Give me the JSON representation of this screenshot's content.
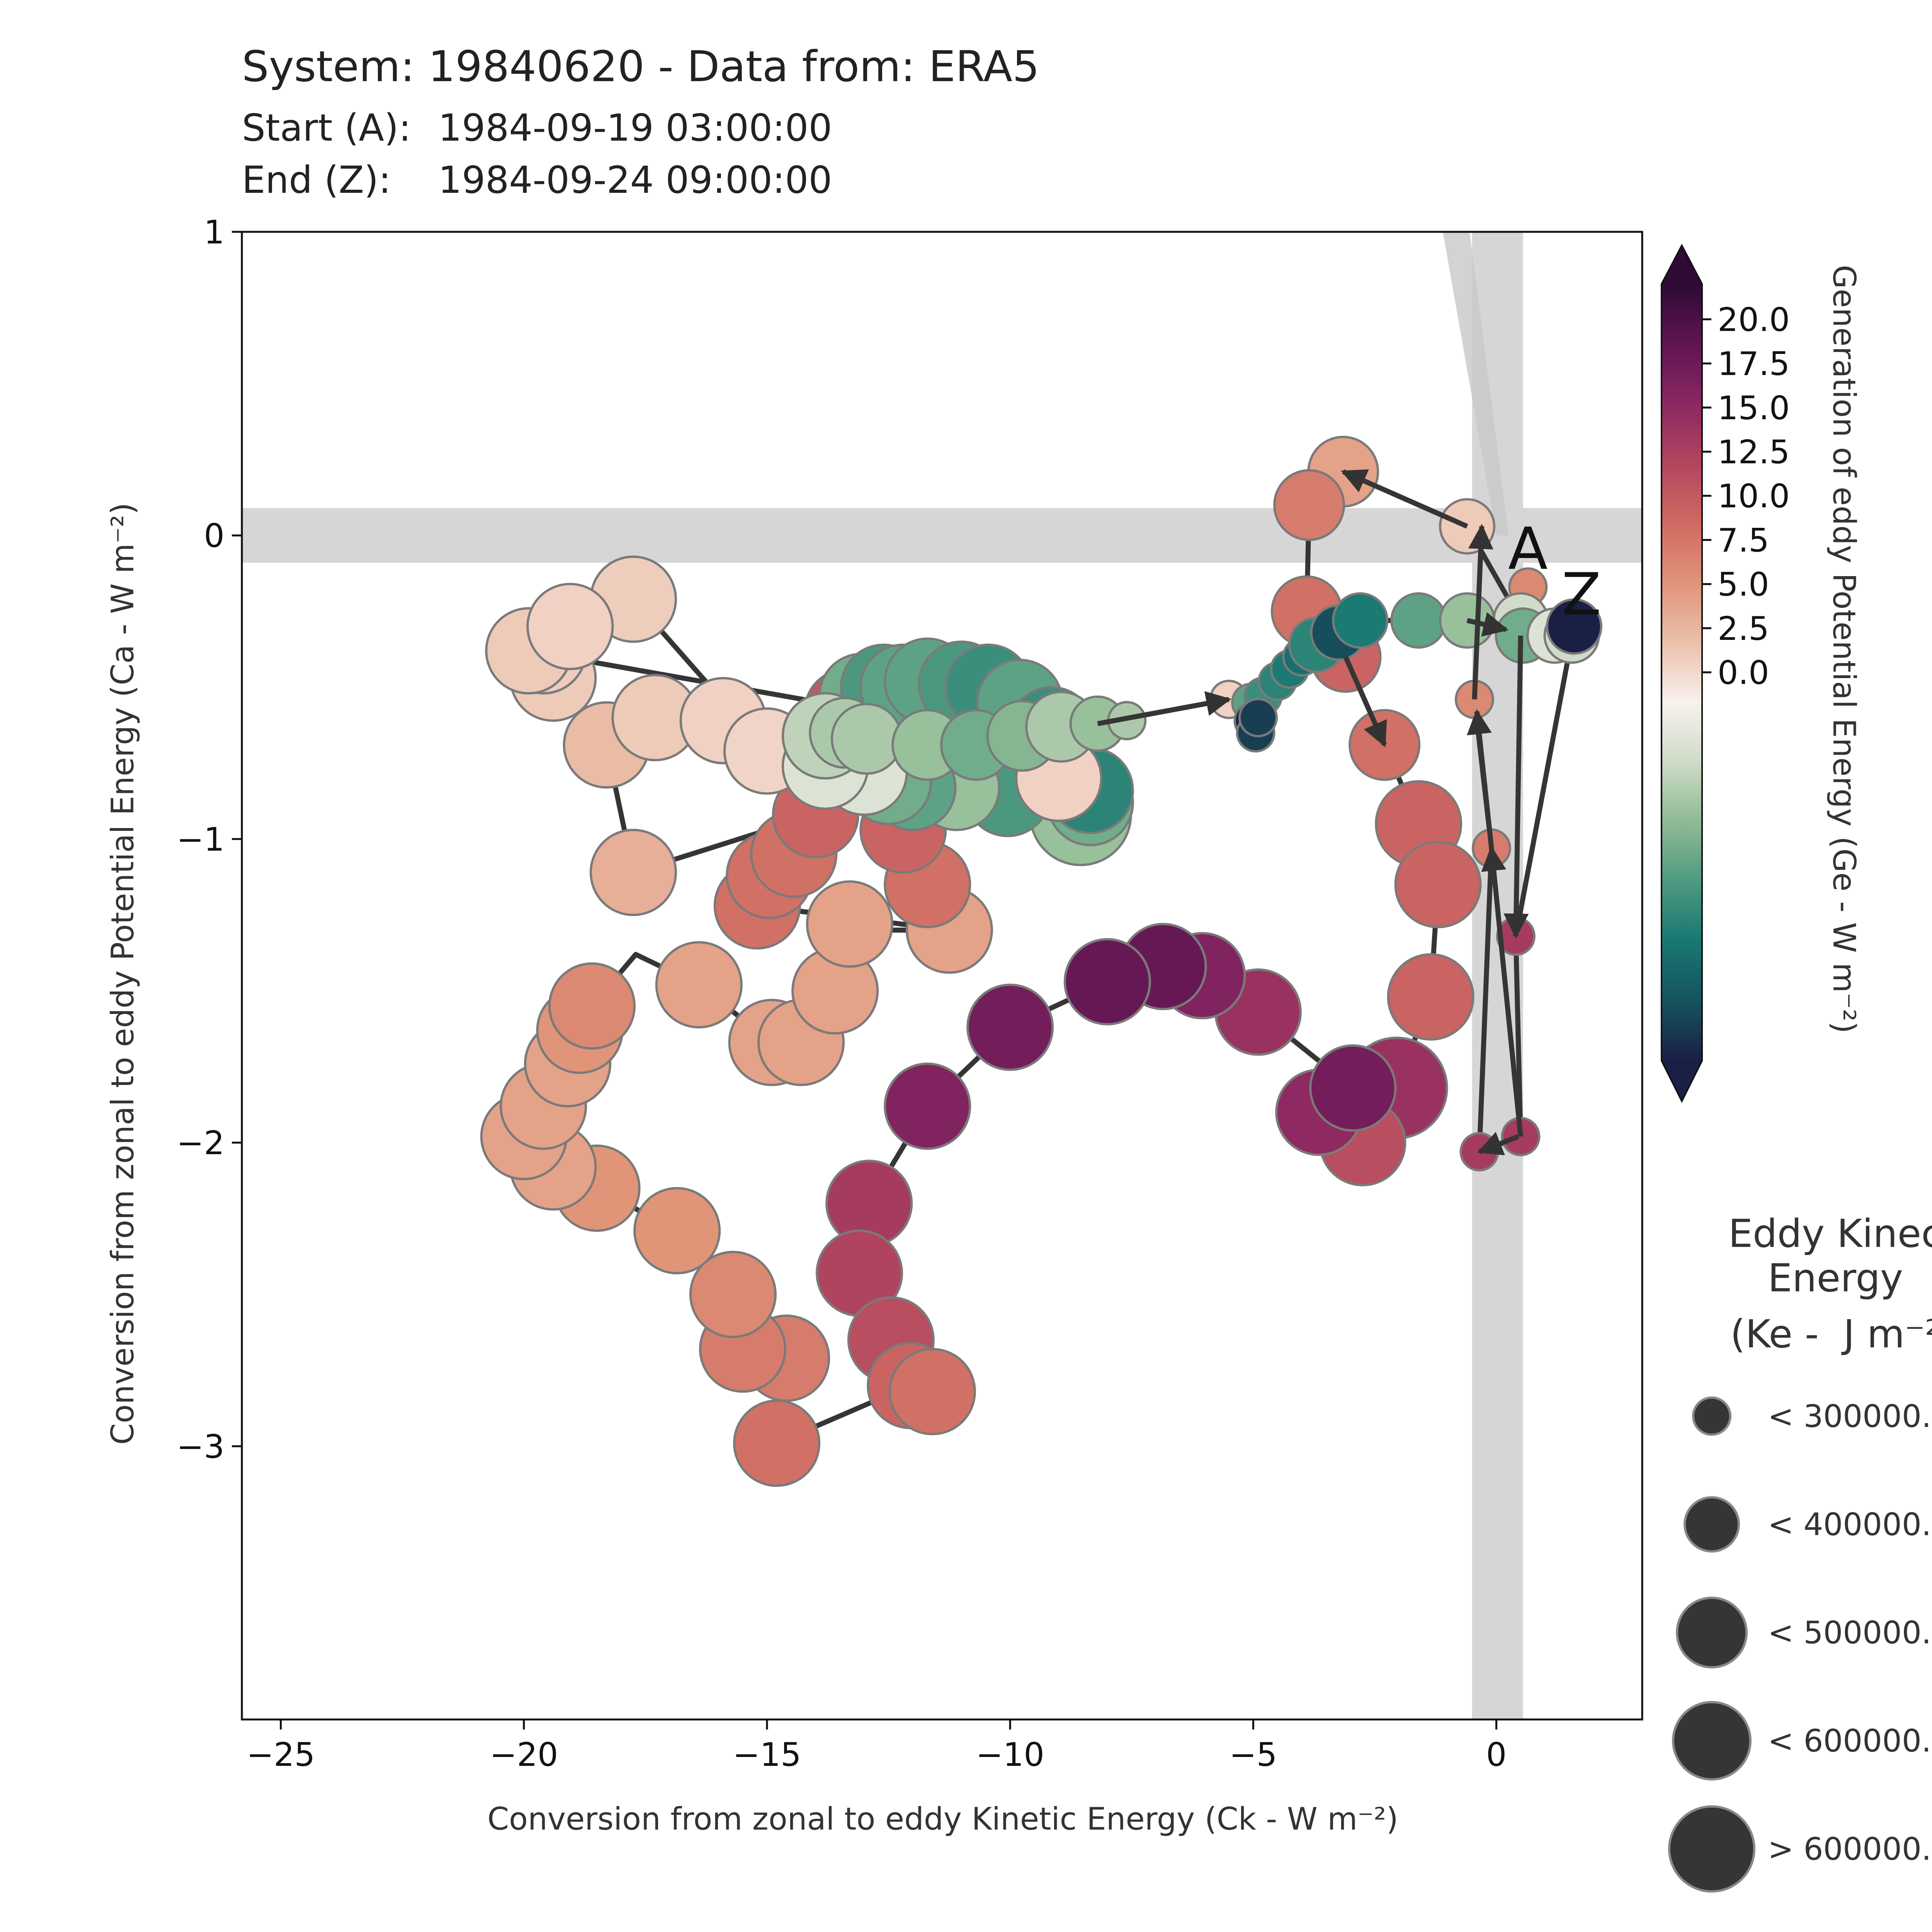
{
  "header": {
    "title": "System: 19840620 - Data from: ERA5",
    "start_label": "Start (A):",
    "start_value": "1984-09-19 03:00:00",
    "end_label": "End (Z):",
    "end_value": "1984-09-24 09:00:00"
  },
  "colorbar": {
    "label": "Generation of eddy Potential Energy (Ge -  W m⁻²)",
    "ticks": [
      "20.0",
      "17.5",
      "15.0",
      "12.5",
      "10.0",
      "7.5",
      "5.0",
      "2.5",
      "0.0"
    ],
    "tick_values": [
      20,
      17.5,
      15,
      12.5,
      10,
      7.5,
      5,
      2.5,
      0
    ],
    "range": [
      -22,
      22
    ],
    "colors": [
      "#1a1f45",
      "#16545e",
      "#177871",
      "#4e9a80",
      "#8fbb94",
      "#cfdcc8",
      "#f8f1ee",
      "#ebc0ab",
      "#e09478",
      "#cf6a62",
      "#b2455f",
      "#8b2762",
      "#5e1552",
      "#2e0a35"
    ]
  },
  "size_legend": {
    "title_lines": [
      "Eddy Kinec",
      "Energy",
      "(Ke -  J m⁻²"
    ],
    "items": [
      "< 300000.",
      "< 400000.",
      "< 500000.",
      "< 600000.",
      "> 600000."
    ]
  },
  "chart_data": {
    "type": "scatter",
    "title": "System: 19840620 - Data from: ERA5",
    "xlabel": "Conversion from zonal to eddy Kinetic Energy (Ck -  W m⁻²)",
    "ylabel": "Conversion from zonal to eddy Potential Energy (Ca -  W m⁻²)",
    "xlim": [
      -25.8,
      3.0
    ],
    "ylim": [
      -3.9,
      1.0
    ],
    "xticks": [
      "−25",
      "−20",
      "−15",
      "−10",
      "−5",
      "0"
    ],
    "xtick_values": [
      -25,
      -20,
      -15,
      -10,
      -5,
      0
    ],
    "yticks": [
      "1",
      "0",
      "−1",
      "−2",
      "−3"
    ],
    "ytick_values": [
      1,
      0,
      -1,
      -2,
      -3
    ],
    "start_marker": "A",
    "end_marker": "Z",
    "shaded_bands": {
      "x_band": [
        -0.5,
        0.55
      ],
      "y_band": [
        -0.09,
        0.09
      ]
    },
    "points": [
      {
        "x": 0.65,
        "y": -0.17,
        "ge": 6,
        "ke": 1
      },
      {
        "x": 0.5,
        "y": -0.28,
        "ge": -5,
        "ke": 2
      },
      {
        "x": -0.6,
        "y": 0.03,
        "ge": 1,
        "ke": 2
      },
      {
        "x": -3.15,
        "y": 0.21,
        "ge": 4,
        "ke": 3
      },
      {
        "x": -3.85,
        "y": 0.1,
        "ge": 7,
        "ke": 3
      },
      {
        "x": -3.9,
        "y": -0.25,
        "ge": 8,
        "ke": 3
      },
      {
        "x": -3.1,
        "y": -0.4,
        "ge": 9,
        "ke": 3
      },
      {
        "x": -2.3,
        "y": -0.69,
        "ge": 8,
        "ke": 3
      },
      {
        "x": -1.6,
        "y": -0.95,
        "ge": 9,
        "ke": 4
      },
      {
        "x": -1.2,
        "y": -1.15,
        "ge": 9,
        "ke": 4
      },
      {
        "x": -1.35,
        "y": -1.52,
        "ge": 9,
        "ke": 4
      },
      {
        "x": -2.05,
        "y": -1.82,
        "ge": 14,
        "ke": 5
      },
      {
        "x": -2.75,
        "y": -2.0,
        "ge": 11,
        "ke": 4
      },
      {
        "x": -3.65,
        "y": -1.9,
        "ge": 15,
        "ke": 4
      },
      {
        "x": -2.95,
        "y": -1.82,
        "ge": 17,
        "ke": 4
      },
      {
        "x": -4.9,
        "y": -1.57,
        "ge": 14,
        "ke": 4
      },
      {
        "x": -6.05,
        "y": -1.45,
        "ge": 16,
        "ke": 4
      },
      {
        "x": -6.85,
        "y": -1.42,
        "ge": 18,
        "ke": 4
      },
      {
        "x": -8.0,
        "y": -1.47,
        "ge": 18,
        "ke": 4
      },
      {
        "x": -10.0,
        "y": -1.62,
        "ge": 17,
        "ke": 4
      },
      {
        "x": -11.7,
        "y": -1.88,
        "ge": 16,
        "ke": 4
      },
      {
        "x": -12.9,
        "y": -2.2,
        "ge": 13,
        "ke": 4
      },
      {
        "x": -13.1,
        "y": -2.43,
        "ge": 12,
        "ke": 4
      },
      {
        "x": -12.45,
        "y": -2.65,
        "ge": 11,
        "ke": 4
      },
      {
        "x": -12.05,
        "y": -2.8,
        "ge": 9,
        "ke": 4
      },
      {
        "x": -11.6,
        "y": -2.82,
        "ge": 8,
        "ke": 4
      },
      {
        "x": -14.8,
        "y": -2.99,
        "ge": 8,
        "ke": 4
      },
      {
        "x": -14.6,
        "y": -2.71,
        "ge": 7,
        "ke": 4
      },
      {
        "x": -15.5,
        "y": -2.68,
        "ge": 7,
        "ke": 4
      },
      {
        "x": -15.7,
        "y": -2.5,
        "ge": 6,
        "ke": 4
      },
      {
        "x": -16.85,
        "y": -2.29,
        "ge": 5,
        "ke": 4
      },
      {
        "x": -18.5,
        "y": -2.15,
        "ge": 5,
        "ke": 4
      },
      {
        "x": -19.4,
        "y": -2.08,
        "ge": 4,
        "ke": 4
      },
      {
        "x": -20.0,
        "y": -1.98,
        "ge": 4,
        "ke": 4
      },
      {
        "x": -19.6,
        "y": -1.88,
        "ge": 4,
        "ke": 4
      },
      {
        "x": -19.1,
        "y": -1.74,
        "ge": 4,
        "ke": 4
      },
      {
        "x": -18.85,
        "y": -1.63,
        "ge": 5,
        "ke": 4
      },
      {
        "x": -18.6,
        "y": -1.55,
        "ge": 6,
        "ke": 4
      },
      {
        "x": -16.4,
        "y": -1.48,
        "ge": 4,
        "ke": 4
      },
      {
        "x": -14.9,
        "y": -1.67,
        "ge": 4,
        "ke": 4
      },
      {
        "x": -14.3,
        "y": -1.67,
        "ge": 4,
        "ke": 4
      },
      {
        "x": -13.6,
        "y": -1.5,
        "ge": 4,
        "ke": 4
      },
      {
        "x": -13.3,
        "y": -1.28,
        "ge": 4,
        "ke": 4
      },
      {
        "x": -11.25,
        "y": -1.3,
        "ge": 4,
        "ke": 4
      },
      {
        "x": -11.7,
        "y": -1.15,
        "ge": 8,
        "ke": 4
      },
      {
        "x": -12.2,
        "y": -0.97,
        "ge": 9,
        "ke": 4
      },
      {
        "x": -15.2,
        "y": -1.22,
        "ge": 8,
        "ke": 4
      },
      {
        "x": -14.95,
        "y": -1.12,
        "ge": 8,
        "ke": 4
      },
      {
        "x": -14.45,
        "y": -1.05,
        "ge": 8,
        "ke": 4
      },
      {
        "x": -14.0,
        "y": -0.92,
        "ge": 9,
        "ke": 4
      },
      {
        "x": -18.3,
        "y": -0.69,
        "ge": 2,
        "ke": 4
      },
      {
        "x": -17.75,
        "y": -1.11,
        "ge": 3,
        "ke": 4
      },
      {
        "x": -17.3,
        "y": -0.6,
        "ge": 1,
        "ke": 4
      },
      {
        "x": -15.9,
        "y": -0.61,
        "ge": 0.5,
        "ke": 4
      },
      {
        "x": -15.0,
        "y": -0.71,
        "ge": 0.3,
        "ke": 4
      },
      {
        "x": -17.75,
        "y": -0.21,
        "ge": 0.8,
        "ke": 4
      },
      {
        "x": -19.4,
        "y": -0.47,
        "ge": 1,
        "ke": 4
      },
      {
        "x": -19.6,
        "y": -0.38,
        "ge": 0.8,
        "ke": 4
      },
      {
        "x": -19.9,
        "y": -0.38,
        "ge": 1,
        "ke": 4
      },
      {
        "x": -19.05,
        "y": -0.3,
        "ge": 0.5,
        "ke": 4
      },
      {
        "x": -13.2,
        "y": -0.57,
        "ge": 20,
        "ke": 4
      },
      {
        "x": -13.35,
        "y": -0.58,
        "ge": 10,
        "ke": 4
      },
      {
        "x": -13.05,
        "y": -0.53,
        "ge": -10,
        "ke": 4
      },
      {
        "x": -12.6,
        "y": -0.5,
        "ge": -12,
        "ke": 4
      },
      {
        "x": -12.2,
        "y": -0.5,
        "ge": -11,
        "ke": 4
      },
      {
        "x": -11.7,
        "y": -0.48,
        "ge": -11,
        "ke": 4
      },
      {
        "x": -11.0,
        "y": -0.49,
        "ge": -12,
        "ke": 4
      },
      {
        "x": -10.45,
        "y": -0.5,
        "ge": -13,
        "ke": 4
      },
      {
        "x": -9.8,
        "y": -0.55,
        "ge": -11,
        "ke": 4
      },
      {
        "x": -9.15,
        "y": -0.64,
        "ge": -13,
        "ke": 4
      },
      {
        "x": -8.55,
        "y": -0.92,
        "ge": -8,
        "ke": 5
      },
      {
        "x": -8.35,
        "y": -0.88,
        "ge": -10,
        "ke": 4
      },
      {
        "x": -8.35,
        "y": -0.84,
        "ge": -14,
        "ke": 4
      },
      {
        "x": -10.05,
        "y": -0.85,
        "ge": -12,
        "ke": 4
      },
      {
        "x": -11.1,
        "y": -0.83,
        "ge": -8,
        "ke": 4
      },
      {
        "x": -12.0,
        "y": -0.83,
        "ge": -11,
        "ke": 4
      },
      {
        "x": -12.5,
        "y": -0.81,
        "ge": -10,
        "ke": 4
      },
      {
        "x": -9.0,
        "y": -0.8,
        "ge": 0.5,
        "ke": 4
      },
      {
        "x": -13.0,
        "y": -0.78,
        "ge": -4,
        "ke": 4
      },
      {
        "x": -13.8,
        "y": -0.76,
        "ge": -4,
        "ke": 4
      },
      {
        "x": -13.8,
        "y": -0.66,
        "ge": -6,
        "ke": 4
      },
      {
        "x": -13.4,
        "y": -0.65,
        "ge": -7,
        "ke": 3
      },
      {
        "x": -12.95,
        "y": -0.67,
        "ge": -7,
        "ke": 3
      },
      {
        "x": -11.7,
        "y": -0.69,
        "ge": -8,
        "ke": 3
      },
      {
        "x": -10.7,
        "y": -0.69,
        "ge": -10,
        "ke": 3
      },
      {
        "x": -9.75,
        "y": -0.66,
        "ge": -9,
        "ke": 3
      },
      {
        "x": -8.95,
        "y": -0.63,
        "ge": -7,
        "ke": 3
      },
      {
        "x": -8.2,
        "y": -0.62,
        "ge": -8,
        "ke": 2
      },
      {
        "x": -7.6,
        "y": -0.61,
        "ge": -7,
        "ke": 1
      },
      {
        "x": -5.5,
        "y": -0.54,
        "ge": 0.5,
        "ke": 1
      },
      {
        "x": -5.05,
        "y": -0.55,
        "ge": -11,
        "ke": 1
      },
      {
        "x": -4.8,
        "y": -0.53,
        "ge": -13,
        "ke": 1
      },
      {
        "x": -4.5,
        "y": -0.48,
        "ge": -14,
        "ke": 1
      },
      {
        "x": -4.25,
        "y": -0.44,
        "ge": -15,
        "ke": 1
      },
      {
        "x": -4.0,
        "y": -0.4,
        "ge": -16,
        "ke": 1
      },
      {
        "x": -3.7,
        "y": -0.36,
        "ge": -14,
        "ke": 2
      },
      {
        "x": -3.25,
        "y": -0.32,
        "ge": -19,
        "ke": 2
      },
      {
        "x": -2.8,
        "y": -0.28,
        "ge": -15,
        "ke": 2
      },
      {
        "x": -1.6,
        "y": -0.28,
        "ge": -11,
        "ke": 2
      },
      {
        "x": -0.6,
        "y": -0.28,
        "ge": -8,
        "ke": 2
      },
      {
        "x": 0.55,
        "y": -0.33,
        "ge": -10,
        "ke": 2
      },
      {
        "x": 1.2,
        "y": -0.33,
        "ge": -4,
        "ke": 2
      },
      {
        "x": 1.55,
        "y": -0.33,
        "ge": -5,
        "ke": 2
      },
      {
        "x": 1.6,
        "y": -0.3,
        "ge": -22,
        "ke": 2
      },
      {
        "x": 0.4,
        "y": -1.32,
        "ge": 13,
        "ke": 1
      },
      {
        "x": 0.5,
        "y": -1.98,
        "ge": 13,
        "ke": 1
      },
      {
        "x": -0.35,
        "y": -2.03,
        "ge": 13,
        "ke": 1
      },
      {
        "x": -0.1,
        "y": -1.03,
        "ge": 7,
        "ke": 1
      },
      {
        "x": -0.45,
        "y": -0.54,
        "ge": 6,
        "ke": 1
      },
      {
        "x": -5.0,
        "y": -0.61,
        "ge": -22,
        "ke": 1
      },
      {
        "x": -4.95,
        "y": -0.65,
        "ge": -20,
        "ke": 1
      },
      {
        "x": -4.9,
        "y": -0.6,
        "ge": -20,
        "ke": 1
      }
    ],
    "path": [
      [
        0.65,
        -0.17
      ],
      [
        0.5,
        -0.28
      ],
      [
        -0.6,
        0.03
      ],
      [
        -3.15,
        0.21
      ],
      [
        -3.85,
        0.1
      ],
      [
        -3.9,
        -0.25
      ],
      [
        -3.1,
        -0.4
      ],
      [
        -2.3,
        -0.69
      ],
      [
        -1.6,
        -0.95
      ],
      [
        -1.2,
        -1.15
      ],
      [
        -1.35,
        -1.52
      ],
      [
        -2.05,
        -1.82
      ],
      [
        -2.95,
        -1.82
      ],
      [
        -4.9,
        -1.57
      ],
      [
        -6.05,
        -1.45
      ],
      [
        -6.85,
        -1.42
      ],
      [
        -8.0,
        -1.47
      ],
      [
        -10.0,
        -1.62
      ],
      [
        -11.7,
        -1.88
      ],
      [
        -12.9,
        -2.2
      ],
      [
        -13.1,
        -2.43
      ],
      [
        -12.45,
        -2.65
      ],
      [
        -12.05,
        -2.8
      ],
      [
        -14.8,
        -2.99
      ],
      [
        -14.6,
        -2.71
      ],
      [
        -15.5,
        -2.68
      ],
      [
        -15.7,
        -2.5
      ],
      [
        -16.85,
        -2.29
      ],
      [
        -18.5,
        -2.15
      ],
      [
        -20.0,
        -1.98
      ],
      [
        -19.1,
        -1.74
      ],
      [
        -18.6,
        -1.55
      ],
      [
        -17.7,
        -1.38
      ],
      [
        -16.4,
        -1.48
      ],
      [
        -14.9,
        -1.67
      ],
      [
        -14.3,
        -1.67
      ],
      [
        -13.6,
        -1.5
      ],
      [
        -13.3,
        -1.28
      ],
      [
        -12.6,
        -1.3
      ],
      [
        -11.25,
        -1.3
      ],
      [
        -15.2,
        -1.22
      ],
      [
        -14.0,
        -0.92
      ],
      [
        -17.75,
        -1.11
      ],
      [
        -18.3,
        -0.69
      ],
      [
        -17.3,
        -0.6
      ],
      [
        -15.9,
        -0.61
      ],
      [
        -15.0,
        -0.71
      ],
      [
        -17.75,
        -0.21
      ],
      [
        -19.9,
        -0.38
      ],
      [
        -13.2,
        -0.57
      ],
      [
        -12.2,
        -0.5
      ],
      [
        -10.45,
        -0.5
      ],
      [
        -9.15,
        -0.64
      ],
      [
        -8.35,
        -0.88
      ],
      [
        -10.05,
        -0.85
      ],
      [
        -12.5,
        -0.81
      ],
      [
        -13.8,
        -0.76
      ],
      [
        -13.4,
        -0.65
      ],
      [
        -11.7,
        -0.69
      ],
      [
        -9.75,
        -0.66
      ],
      [
        -8.2,
        -0.62
      ],
      [
        -5.5,
        -0.54
      ],
      [
        -4.8,
        -0.53
      ],
      [
        -4.25,
        -0.44
      ],
      [
        -3.7,
        -0.36
      ],
      [
        -2.8,
        -0.28
      ],
      [
        -1.6,
        -0.28
      ],
      [
        -0.6,
        -0.28
      ],
      [
        0.55,
        -0.33
      ],
      [
        1.6,
        -0.3
      ],
      [
        0.4,
        -1.32
      ],
      [
        0.5,
        -1.98
      ],
      [
        -0.35,
        -2.03
      ],
      [
        -0.1,
        -1.03
      ],
      [
        -0.45,
        -0.54
      ],
      [
        -0.3,
        0.03
      ]
    ],
    "arrow_segments": [
      [
        [
          -0.6,
          0.03
        ],
        [
          -3.15,
          0.21
        ]
      ],
      [
        [
          -3.1,
          -0.4
        ],
        [
          -2.3,
          -0.69
        ]
      ],
      [
        [
          -8.2,
          -0.62
        ],
        [
          -5.5,
          -0.54
        ]
      ],
      [
        [
          -0.6,
          -0.28
        ],
        [
          0.2,
          -0.31
        ]
      ],
      [
        [
          0.5,
          -0.33
        ],
        [
          0.4,
          -1.32
        ]
      ],
      [
        [
          0.5,
          -1.98
        ],
        [
          -0.1,
          -1.03
        ]
      ],
      [
        [
          -0.1,
          -1.03
        ],
        [
          -0.4,
          -0.58
        ]
      ],
      [
        [
          -0.45,
          -0.54
        ],
        [
          -0.3,
          0.03
        ]
      ],
      [
        [
          0.45,
          -1.98
        ],
        [
          -0.35,
          -2.03
        ]
      ]
    ],
    "highlight_point": {
      "x": -2.05,
      "y": -1.82
    }
  }
}
